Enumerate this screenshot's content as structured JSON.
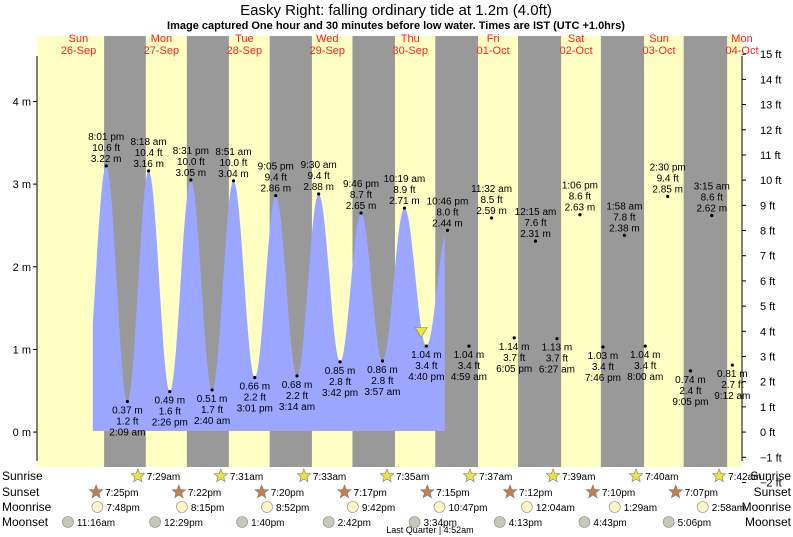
{
  "title": "Easky Right: falling  ordinary tide at 1.2m (4.0ft)",
  "subtitle": "Image captured One hour and 30 minutes before low water. Times are IST (UTC +1.0hrs)",
  "colors": {
    "water": "#9aa6ff",
    "day": "#ffffc4",
    "night": "#999999",
    "date": "#ff2020",
    "text": "#000000"
  },
  "days": [
    {
      "name": "Sun",
      "date": "26-Sep"
    },
    {
      "name": "Mon",
      "date": "27-Sep"
    },
    {
      "name": "Tue",
      "date": "28-Sep"
    },
    {
      "name": "Wed",
      "date": "29-Sep"
    },
    {
      "name": "Thu",
      "date": "30-Sep"
    },
    {
      "name": "Fri",
      "date": "01-Oct"
    },
    {
      "name": "Sat",
      "date": "02-Oct"
    },
    {
      "name": "Sun",
      "date": "03-Oct"
    },
    {
      "name": "Mon",
      "date": "04-Oct"
    }
  ],
  "chart_data": {
    "type": "area",
    "title": "Easky Right: falling  ordinary tide at 1.2m (4.0ft)",
    "subtitle": "Image captured One hour and 30 minutes before low water. Times are IST (UTC +1.0hrs)",
    "y_left_unit": "m",
    "y_left_ticks": [
      "4 m",
      "3 m",
      "2 m",
      "1 m",
      "0 m"
    ],
    "y_left_values": [
      4,
      3,
      2,
      1,
      0
    ],
    "y_right_ticks": [
      "15 ft",
      "14 ft",
      "13 ft",
      "12 ft",
      "11 ft",
      "10 ft",
      "9 ft",
      "8 ft",
      "7 ft",
      "6 ft",
      "5 ft",
      "4 ft",
      "3 ft",
      "2 ft",
      "1 ft",
      "0 ft",
      "−1 ft",
      "−2 ft"
    ],
    "y_right_values": [
      15,
      14,
      13,
      12,
      11,
      10,
      9,
      8,
      7,
      6,
      5,
      4,
      3,
      2,
      1,
      0,
      -1,
      -2
    ],
    "ylim_m": [
      -0.35,
      4.55
    ],
    "x_start": "2021-09-26 00:00",
    "x_end": "2021-10-04 12:00",
    "current": {
      "time": "2021-09-30 15:10",
      "height_m": 1.18
    },
    "tides": [
      {
        "type": "high",
        "time": "2021-09-26 20:01",
        "label": "8:01 pm",
        "m": 3.22,
        "ft": "10.6 ft",
        "m_label": "3.22 m"
      },
      {
        "type": "low",
        "time": "2021-09-27 02:09",
        "label": "2:09 am",
        "m": 0.37,
        "ft": "1.2 ft",
        "m_label": "0.37 m"
      },
      {
        "type": "high",
        "time": "2021-09-27 08:18",
        "label": "8:18 am",
        "m": 3.16,
        "ft": "10.4 ft",
        "m_label": "3.16 m"
      },
      {
        "type": "low",
        "time": "2021-09-27 14:26",
        "label": "2:26 pm",
        "m": 0.49,
        "ft": "1.6 ft",
        "m_label": "0.49 m"
      },
      {
        "type": "high",
        "time": "2021-09-27 20:31",
        "label": "8:31 pm",
        "m": 3.05,
        "ft": "10.0 ft",
        "m_label": "3.05 m"
      },
      {
        "type": "low",
        "time": "2021-09-28 02:40",
        "label": "2:40 am",
        "m": 0.51,
        "ft": "1.7 ft",
        "m_label": "0.51 m"
      },
      {
        "type": "high",
        "time": "2021-09-28 08:51",
        "label": "8:51 am",
        "m": 3.04,
        "ft": "10.0 ft",
        "m_label": "3.04 m"
      },
      {
        "type": "low",
        "time": "2021-09-28 15:01",
        "label": "3:01 pm",
        "m": 0.66,
        "ft": "2.2 ft",
        "m_label": "0.66 m"
      },
      {
        "type": "high",
        "time": "2021-09-28 21:05",
        "label": "9:05 pm",
        "m": 2.86,
        "ft": "9.4 ft",
        "m_label": "2.86 m"
      },
      {
        "type": "low",
        "time": "2021-09-29 03:14",
        "label": "3:14 am",
        "m": 0.68,
        "ft": "2.2 ft",
        "m_label": "0.68 m"
      },
      {
        "type": "high",
        "time": "2021-09-29 09:30",
        "label": "9:30 am",
        "m": 2.88,
        "ft": "9.4 ft",
        "m_label": "2.88 m"
      },
      {
        "type": "low",
        "time": "2021-09-29 15:42",
        "label": "3:42 pm",
        "m": 0.85,
        "ft": "2.8 ft",
        "m_label": "0.85 m"
      },
      {
        "type": "high",
        "time": "2021-09-29 21:46",
        "label": "9:46 pm",
        "m": 2.65,
        "ft": "8.7 ft",
        "m_label": "2.65 m"
      },
      {
        "type": "low",
        "time": "2021-09-30 03:57",
        "label": "3:57 am",
        "m": 0.86,
        "ft": "2.8 ft",
        "m_label": "0.86 m"
      },
      {
        "type": "high",
        "time": "2021-09-30 10:19",
        "label": "10:19 am",
        "m": 2.71,
        "ft": "8.9 ft",
        "m_label": "2.71 m"
      },
      {
        "type": "low",
        "time": "2021-09-30 16:40",
        "label": "4:40 pm",
        "m": 1.04,
        "ft": "3.4 ft",
        "m_label": "1.04 m"
      },
      {
        "type": "high",
        "time": "2021-09-30 22:46",
        "label": "10:46 pm",
        "m": 2.44,
        "ft": "8.0 ft",
        "m_label": "2.44 m"
      },
      {
        "type": "low",
        "time": "2021-10-01 04:59",
        "label": "4:59 am",
        "m": 1.04,
        "ft": "3.4 ft",
        "m_label": "1.04 m"
      },
      {
        "type": "high",
        "time": "2021-10-01 11:32",
        "label": "11:32 am",
        "m": 2.59,
        "ft": "8.5 ft",
        "m_label": "2.59 m"
      },
      {
        "type": "low",
        "time": "2021-10-01 18:05",
        "label": "6:05 pm",
        "m": 1.14,
        "ft": "3.7 ft",
        "m_label": "1.14 m"
      },
      {
        "type": "high",
        "time": "2021-10-02 00:15",
        "label": "12:15 am",
        "m": 2.31,
        "ft": "7.6 ft",
        "m_label": "2.31 m"
      },
      {
        "type": "low",
        "time": "2021-10-02 06:27",
        "label": "6:27 am",
        "m": 1.13,
        "ft": "3.7 ft",
        "m_label": "1.13 m"
      },
      {
        "type": "high",
        "time": "2021-10-02 13:06",
        "label": "1:06 pm",
        "m": 2.63,
        "ft": "8.6 ft",
        "m_label": "2.63 m"
      },
      {
        "type": "low",
        "time": "2021-10-02 19:46",
        "label": "7:46 pm",
        "m": 1.03,
        "ft": "3.4 ft",
        "m_label": "1.03 m"
      },
      {
        "type": "high",
        "time": "2021-10-03 01:58",
        "label": "1:58 am",
        "m": 2.38,
        "ft": "7.8 ft",
        "m_label": "2.38 m"
      },
      {
        "type": "low",
        "time": "2021-10-03 08:00",
        "label": "8:00 am",
        "m": 1.04,
        "ft": "3.4 ft",
        "m_label": "1.04 m"
      },
      {
        "type": "high",
        "time": "2021-10-03 14:30",
        "label": "2:30 pm",
        "m": 2.85,
        "ft": "9.4 ft",
        "m_label": "2.85 m"
      },
      {
        "type": "low",
        "time": "2021-10-03 21:05",
        "label": "9:05 pm",
        "m": 0.74,
        "ft": "2.4 ft",
        "m_label": "0.74 m"
      },
      {
        "type": "high",
        "time": "2021-10-04 03:15",
        "label": "3:15 am",
        "m": 2.62,
        "ft": "8.6 ft",
        "m_label": "2.62 m"
      },
      {
        "type": "low",
        "time": "2021-10-04 09:12",
        "label": "9:12 am",
        "m": 0.81,
        "ft": "2.7 ft",
        "m_label": "0.81 m"
      }
    ],
    "sunrise": [
      {
        "time": "2021-09-27 07:29",
        "label": "7:29am"
      },
      {
        "time": "2021-09-28 07:31",
        "label": "7:31am"
      },
      {
        "time": "2021-09-29 07:33",
        "label": "7:33am"
      },
      {
        "time": "2021-09-30 07:35",
        "label": "7:35am"
      },
      {
        "time": "2021-10-01 07:37",
        "label": "7:37am"
      },
      {
        "time": "2021-10-02 07:39",
        "label": "7:39am"
      },
      {
        "time": "2021-10-03 07:40",
        "label": "7:40am"
      },
      {
        "time": "2021-10-04 07:42",
        "label": "7:42am"
      }
    ],
    "sunset": [
      {
        "time": "2021-09-26 19:25",
        "label": "7:25pm"
      },
      {
        "time": "2021-09-27 19:22",
        "label": "7:22pm"
      },
      {
        "time": "2021-09-28 19:20",
        "label": "7:20pm"
      },
      {
        "time": "2021-09-29 19:17",
        "label": "7:17pm"
      },
      {
        "time": "2021-09-30 19:15",
        "label": "7:15pm"
      },
      {
        "time": "2021-10-01 19:12",
        "label": "7:12pm"
      },
      {
        "time": "2021-10-02 19:10",
        "label": "7:10pm"
      },
      {
        "time": "2021-10-03 19:07",
        "label": "7:07pm"
      }
    ],
    "moonrise": [
      {
        "time": "2021-09-26 19:48",
        "label": "7:48pm"
      },
      {
        "time": "2021-09-27 20:15",
        "label": "8:15pm"
      },
      {
        "time": "2021-09-28 20:52",
        "label": "8:52pm"
      },
      {
        "time": "2021-09-29 21:42",
        "label": "9:42pm"
      },
      {
        "time": "2021-09-30 22:47",
        "label": "10:47pm"
      },
      {
        "time": "2021-10-02 00:04",
        "label": "12:04am"
      },
      {
        "time": "2021-10-03 01:29",
        "label": "1:29am"
      },
      {
        "time": "2021-10-04 02:58",
        "label": "2:58am"
      }
    ],
    "moonset": [
      {
        "time": "2021-09-26 11:16",
        "label": "11:16am"
      },
      {
        "time": "2021-09-27 12:29",
        "label": "12:29pm"
      },
      {
        "time": "2021-09-28 13:40",
        "label": "1:40pm"
      },
      {
        "time": "2021-09-29 14:42",
        "label": "2:42pm"
      },
      {
        "time": "2021-09-30 15:34",
        "label": "3:34pm"
      },
      {
        "time": "2021-10-01 16:13",
        "label": "4:13pm"
      },
      {
        "time": "2021-10-02 16:43",
        "label": "4:43pm"
      },
      {
        "time": "2021-10-03 17:06",
        "label": "5:06pm"
      }
    ],
    "moon_phase": {
      "label": "Last Quarter | 4:52am"
    }
  },
  "rows": {
    "sunrise": "Sunrise",
    "sunset": "Sunset",
    "moonrise": "Moonrise",
    "moonset": "Moonset"
  }
}
